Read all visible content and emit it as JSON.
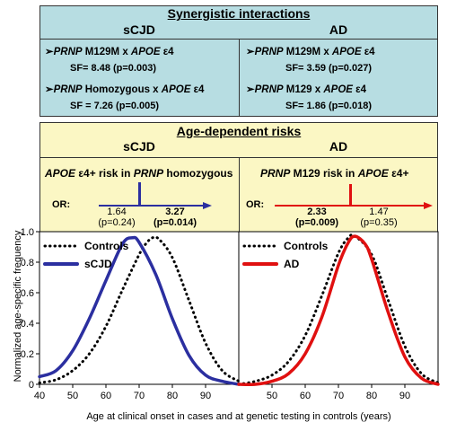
{
  "synergy": {
    "title": "Synergistic interactions",
    "left_header": "sCJD",
    "right_header": "AD",
    "left": [
      {
        "gene": "PRNP",
        "middle": " M129M x ",
        "gene2": "APOE",
        "tail": " ε4",
        "sf": "SF= 8.48 (p=0.003)"
      },
      {
        "gene": "PRNP",
        "middle": " Homozygous x ",
        "gene2": "APOE",
        "tail": " ε4",
        "sf": "SF =  7.26 (p=0.005)"
      }
    ],
    "right": [
      {
        "gene": "PRNP",
        "middle": " M129M x ",
        "gene2": "APOE",
        "tail": " ε4",
        "sf": "SF= 3.59 (p=0.027)"
      },
      {
        "gene": "PRNP",
        "middle": " M129 x ",
        "gene2": "APOE",
        "tail": " ε4",
        "sf": "SF= 1.86 (p=0.018)"
      }
    ],
    "arrow_glyph": "➢"
  },
  "age_risks": {
    "title": "Age-dependent risks",
    "left_header": "sCJD",
    "right_header": "AD",
    "left": {
      "label_a": "APOE",
      "label_b": " ε4+ risk in ",
      "label_c": "PRNP",
      "label_d": " homozygous",
      "or_label": "OR:",
      "or_low": "1.64",
      "p_low": "(p=0.24)",
      "or_high": "3.27",
      "p_high": "(p=0.014)"
    },
    "right": {
      "label_a": "PRNP",
      "label_b": " M129 risk in ",
      "label_c": "APOE",
      "label_d": " ε4+",
      "or_label": "OR:",
      "or_high": "2.33",
      "p_high": "(p=0.009)",
      "or_low": "1.47",
      "p_low": "(p=0.35)"
    },
    "colors": {
      "scjd": "#2b2fa0",
      "ad": "#e01010"
    }
  },
  "chart_data": [
    {
      "type": "line",
      "ylabel": "Normalized age-specific frequency",
      "xlim": [
        40,
        100
      ],
      "ylim": [
        0,
        1.0
      ],
      "x_ticks": [
        40,
        50,
        60,
        70,
        80,
        90
      ],
      "y_ticks": [
        "0",
        "0.2",
        "0.4",
        "0.6",
        "0.8",
        "1.0"
      ],
      "legend": [
        "Controls",
        "sCJD"
      ],
      "series": [
        {
          "name": "Controls",
          "style": "dotted",
          "color": "#000000",
          "x": [
            40,
            45,
            50,
            55,
            60,
            65,
            70,
            72,
            74,
            76,
            80,
            85,
            90,
            95,
            100
          ],
          "y": [
            0.01,
            0.03,
            0.09,
            0.2,
            0.38,
            0.62,
            0.85,
            0.92,
            0.96,
            0.95,
            0.83,
            0.55,
            0.27,
            0.09,
            0.02
          ]
        },
        {
          "name": "sCJD",
          "style": "solid",
          "color": "#2b2fa0",
          "x": [
            40,
            45,
            50,
            55,
            60,
            65,
            68,
            70,
            75,
            80,
            85,
            90,
            95,
            100
          ],
          "y": [
            0.05,
            0.09,
            0.22,
            0.43,
            0.68,
            0.92,
            0.96,
            0.93,
            0.72,
            0.43,
            0.19,
            0.06,
            0.02,
            0.0
          ]
        }
      ]
    },
    {
      "type": "line",
      "xlim": [
        40,
        100
      ],
      "ylim": [
        0,
        1.0
      ],
      "x_ticks": [
        50,
        60,
        70,
        80,
        90
      ],
      "legend": [
        "Controls",
        "AD"
      ],
      "series": [
        {
          "name": "Controls",
          "style": "dotted",
          "color": "#000000",
          "x": [
            40,
            45,
            50,
            55,
            60,
            65,
            70,
            73,
            75,
            80,
            85,
            90,
            95,
            100
          ],
          "y": [
            0.0,
            0.02,
            0.06,
            0.15,
            0.32,
            0.58,
            0.86,
            0.96,
            0.97,
            0.85,
            0.55,
            0.25,
            0.07,
            0.01
          ]
        },
        {
          "name": "AD",
          "style": "solid",
          "color": "#e01010",
          "x": [
            40,
            45,
            50,
            55,
            60,
            65,
            70,
            73,
            75,
            78,
            80,
            85,
            90,
            95,
            100
          ],
          "y": [
            0.0,
            0.0,
            0.02,
            0.07,
            0.2,
            0.44,
            0.78,
            0.93,
            0.97,
            0.92,
            0.82,
            0.47,
            0.18,
            0.04,
            0.0
          ]
        }
      ]
    }
  ],
  "xlabel": "Age at clinical onset in cases and at genetic testing in controls (years)"
}
